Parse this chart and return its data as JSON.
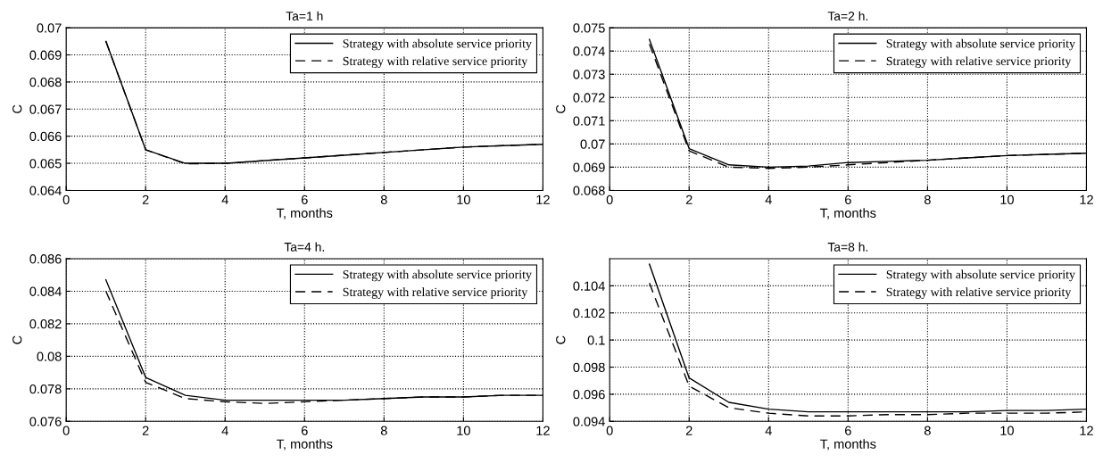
{
  "chart_data": [
    {
      "type": "line",
      "title": "Ta=1 h",
      "xlabel": "T, months",
      "ylabel": "C",
      "xlim": [
        0,
        12
      ],
      "xticks": [
        0,
        2,
        4,
        6,
        8,
        10,
        12
      ],
      "ylim": [
        0.064,
        0.07
      ],
      "yticks": [
        0.064,
        0.065,
        0.066,
        0.067,
        0.068,
        0.069,
        0.07
      ],
      "grid": true,
      "legend": "top right",
      "x": [
        1,
        2,
        3,
        4,
        5,
        6,
        7,
        8,
        9,
        10,
        11,
        12
      ],
      "series": [
        {
          "name": "Strategy with absolute service priority",
          "color": "#000000",
          "line_style": "solid",
          "values": [
            0.0695,
            0.0655,
            0.065,
            0.065,
            0.0651,
            0.0652,
            0.0653,
            0.0654,
            0.0655,
            0.0656,
            0.06565,
            0.0657
          ]
        },
        {
          "name": "Strategy with relative service priority",
          "color": "#000000",
          "line_style": "dashed",
          "values": [
            0.0695,
            0.0655,
            0.06498,
            0.065,
            0.0651,
            0.0652,
            0.0653,
            0.0654,
            0.0655,
            0.0656,
            0.06565,
            0.0657
          ]
        }
      ]
    },
    {
      "type": "line",
      "title": "Ta=2 h.",
      "xlabel": "T, months",
      "ylabel": "C",
      "xlim": [
        0,
        12
      ],
      "xticks": [
        0,
        2,
        4,
        6,
        8,
        10,
        12
      ],
      "ylim": [
        0.068,
        0.075
      ],
      "yticks": [
        0.068,
        0.069,
        0.07,
        0.071,
        0.072,
        0.073,
        0.074,
        0.075
      ],
      "grid": true,
      "legend": "top right",
      "x": [
        1,
        2,
        3,
        4,
        5,
        6,
        7,
        8,
        9,
        10,
        11,
        12
      ],
      "series": [
        {
          "name": "Strategy with absolute service priority",
          "color": "#000000",
          "line_style": "solid",
          "values": [
            0.0745,
            0.0698,
            0.0691,
            0.069,
            0.06905,
            0.0692,
            0.06925,
            0.0693,
            0.0694,
            0.0695,
            0.06955,
            0.0696
          ]
        },
        {
          "name": "Strategy with relative service priority",
          "color": "#000000",
          "line_style": "dashed",
          "values": [
            0.0743,
            0.0697,
            0.069,
            0.06895,
            0.069,
            0.0691,
            0.0692,
            0.0693,
            0.0694,
            0.0695,
            0.06955,
            0.0696
          ]
        }
      ]
    },
    {
      "type": "line",
      "title": "Ta=4 h.",
      "xlabel": "T, months",
      "ylabel": "C",
      "xlim": [
        0,
        12
      ],
      "xticks": [
        0,
        2,
        4,
        6,
        8,
        10,
        12
      ],
      "ylim": [
        0.076,
        0.086
      ],
      "yticks": [
        0.076,
        0.078,
        0.08,
        0.082,
        0.084,
        0.086
      ],
      "grid": true,
      "legend": "top right",
      "x": [
        1,
        2,
        3,
        4,
        5,
        6,
        7,
        8,
        9,
        10,
        11,
        12
      ],
      "series": [
        {
          "name": "Strategy with absolute service priority",
          "color": "#000000",
          "line_style": "solid",
          "values": [
            0.0847,
            0.0787,
            0.0776,
            0.0773,
            0.0773,
            0.0773,
            0.0773,
            0.0774,
            0.0775,
            0.0775,
            0.0776,
            0.0776
          ]
        },
        {
          "name": "Strategy with relative service priority",
          "color": "#000000",
          "line_style": "dashed",
          "values": [
            0.084,
            0.0784,
            0.0774,
            0.0772,
            0.0771,
            0.0772,
            0.0773,
            0.0774,
            0.0775,
            0.0775,
            0.0776,
            0.0776
          ]
        }
      ]
    },
    {
      "type": "line",
      "title": "Ta=8 h.",
      "xlabel": "T, months",
      "ylabel": "C",
      "xlim": [
        0,
        12
      ],
      "xticks": [
        0,
        2,
        4,
        6,
        8,
        10,
        12
      ],
      "ylim": [
        0.094,
        0.106
      ],
      "yticks": [
        0.094,
        0.096,
        0.098,
        0.1,
        0.102,
        0.104
      ],
      "grid": true,
      "legend": "top right",
      "x": [
        1,
        2,
        3,
        4,
        5,
        6,
        7,
        8,
        9,
        10,
        11,
        12
      ],
      "series": [
        {
          "name": "Strategy with absolute service priority",
          "color": "#000000",
          "line_style": "solid",
          "values": [
            0.1056,
            0.0972,
            0.0954,
            0.0949,
            0.0947,
            0.0947,
            0.0947,
            0.0947,
            0.0947,
            0.0948,
            0.0948,
            0.0949
          ]
        },
        {
          "name": "Strategy with relative service priority",
          "color": "#000000",
          "line_style": "dashed",
          "values": [
            0.1042,
            0.0966,
            0.095,
            0.0946,
            0.0944,
            0.0944,
            0.0945,
            0.0945,
            0.0946,
            0.0946,
            0.0946,
            0.0947
          ]
        }
      ]
    }
  ]
}
